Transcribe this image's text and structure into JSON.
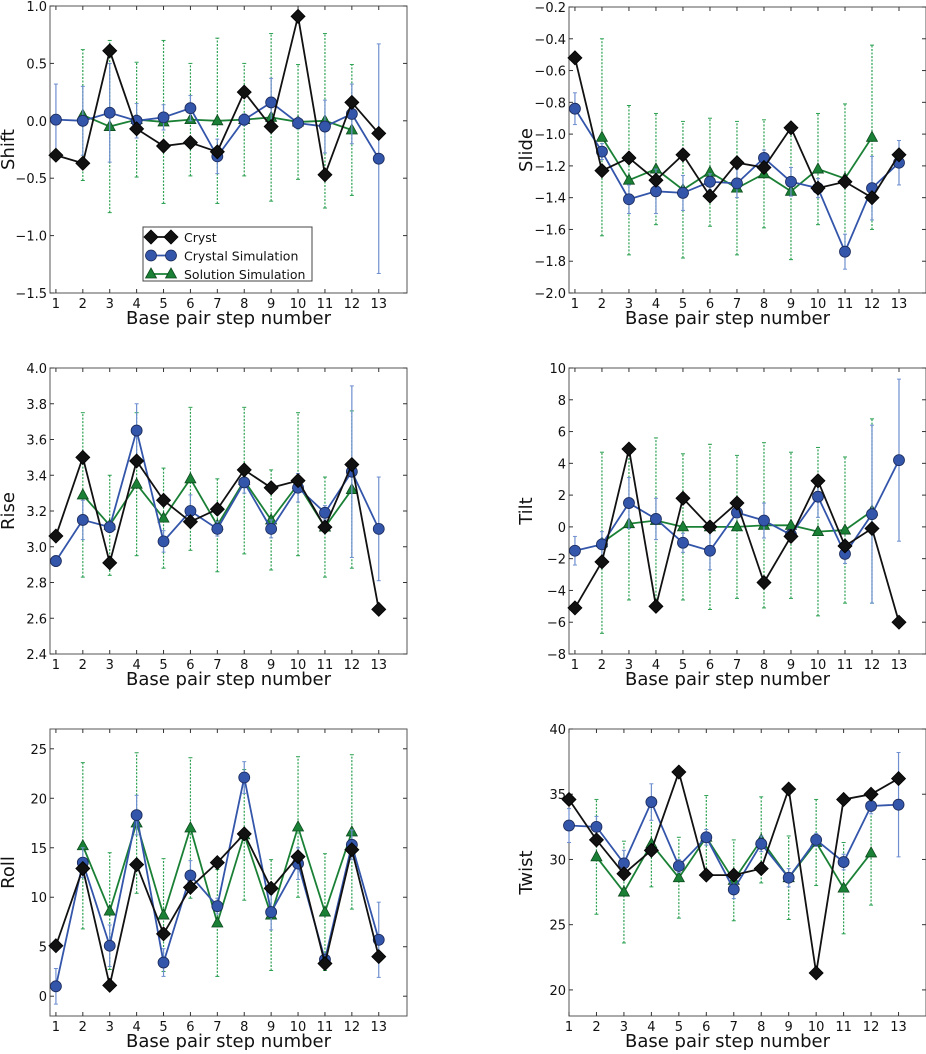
{
  "colors": {
    "cryst": "#111111",
    "crystal_sim": "#3355aa",
    "solution_sim": "#1a8035",
    "crystal_sim_err": "#6f8fd0",
    "solution_sim_err": "#2aa050"
  },
  "legend": {
    "cryst": "Cryst",
    "crystal_sim": "Crystal Simulation",
    "solution_sim": "Solution Simulation"
  },
  "chart_data": [
    {
      "type": "line",
      "title": "",
      "xlabel": "Base pair step number",
      "ylabel": "Shift",
      "xlim": [
        0.78,
        14.05
      ],
      "ylim": [
        -1.5,
        1.0
      ],
      "xticks": [
        "1",
        "2",
        "3",
        "4",
        "5",
        "6",
        "7",
        "8",
        "9",
        "10",
        "11",
        "12",
        "13"
      ],
      "yticks": [
        -1.5,
        -1.0,
        -0.5,
        0.0,
        0.5,
        1.0
      ],
      "yticklabels": [
        "−1.5",
        "−1.0",
        "−0.5",
        "0.0",
        "0.5",
        "1.0"
      ],
      "legend_position": "lower-center",
      "series": [
        {
          "name": "Cryst",
          "x": [
            1,
            2,
            3,
            4,
            5,
            6,
            7,
            8,
            9,
            10,
            11,
            12,
            13
          ],
          "values": [
            -0.3,
            -0.37,
            0.61,
            -0.07,
            -0.22,
            -0.19,
            -0.27,
            0.25,
            -0.05,
            0.91,
            -0.47,
            0.16,
            -0.11
          ]
        },
        {
          "name": "Crystal Simulation",
          "x": [
            1,
            2,
            3,
            4,
            5,
            6,
            7,
            8,
            9,
            10,
            11,
            12,
            13
          ],
          "values": [
            0.01,
            0.0,
            0.07,
            0.0,
            0.03,
            0.11,
            -0.31,
            0.01,
            0.16,
            -0.02,
            -0.05,
            0.06,
            -0.33
          ],
          "errors": [
            0.31,
            0.3,
            0.43,
            0.15,
            0.11,
            0.11,
            0.15,
            0.05,
            0.21,
            0.05,
            0.23,
            0.26,
            1.0
          ]
        },
        {
          "name": "Solution Simulation",
          "x": [
            2,
            3,
            4,
            5,
            6,
            7,
            8,
            9,
            10,
            11,
            12
          ],
          "values": [
            0.05,
            -0.05,
            0.01,
            -0.01,
            0.01,
            0.0,
            0.01,
            0.03,
            -0.01,
            0.0,
            -0.08
          ],
          "errors": [
            0.57,
            0.75,
            0.5,
            0.71,
            0.49,
            0.72,
            0.49,
            0.73,
            0.5,
            0.76,
            0.57
          ]
        }
      ]
    },
    {
      "type": "line",
      "title": "",
      "xlabel": "Base pair step number",
      "ylabel": "Slide",
      "xlim": [
        0.78,
        14.0
      ],
      "ylim": [
        -2.0,
        -0.2
      ],
      "xticks": [
        "1",
        "2",
        "3",
        "4",
        "5",
        "6",
        "7",
        "8",
        "9",
        "10",
        "11",
        "12",
        "13"
      ],
      "yticks": [
        -2.0,
        -1.8,
        -1.6,
        -1.4,
        -1.2,
        -1.0,
        -0.8,
        -0.6,
        -0.4,
        -0.2
      ],
      "yticklabels": [
        "−2.0",
        "−1.8",
        "−1.6",
        "−1.4",
        "−1.2",
        "−1.0",
        "−0.8",
        "−0.6",
        "−0.4",
        "−0.2"
      ],
      "series": [
        {
          "name": "Cryst",
          "x": [
            1,
            2,
            3,
            4,
            5,
            6,
            7,
            8,
            9,
            10,
            11,
            12,
            13
          ],
          "values": [
            -0.52,
            -1.23,
            -1.15,
            -1.29,
            -1.13,
            -1.39,
            -1.18,
            -1.21,
            -0.96,
            -1.34,
            -1.3,
            -1.4,
            -1.13
          ]
        },
        {
          "name": "Crystal Simulation",
          "x": [
            1,
            2,
            3,
            4,
            5,
            6,
            7,
            8,
            9,
            10,
            11,
            12,
            13
          ],
          "values": [
            -0.84,
            -1.11,
            -1.41,
            -1.36,
            -1.37,
            -1.3,
            -1.31,
            -1.15,
            -1.3,
            -1.34,
            -1.74,
            -1.34,
            -1.18
          ],
          "errors": [
            0.1,
            0.05,
            0.09,
            0.14,
            0.11,
            0.05,
            0.09,
            0.05,
            0.09,
            0.06,
            0.11,
            0.2,
            0.14
          ]
        },
        {
          "name": "Solution Simulation",
          "x": [
            2,
            3,
            4,
            5,
            6,
            7,
            8,
            9,
            10,
            11,
            12
          ],
          "values": [
            -1.02,
            -1.29,
            -1.22,
            -1.35,
            -1.24,
            -1.34,
            -1.25,
            -1.36,
            -1.22,
            -1.28,
            -1.02
          ],
          "errors": [
            0.62,
            0.47,
            0.35,
            0.43,
            0.34,
            0.42,
            0.34,
            0.43,
            0.35,
            0.47,
            0.58
          ]
        }
      ]
    },
    {
      "type": "line",
      "title": "",
      "xlabel": "Base pair step number",
      "ylabel": "Rise",
      "xlim": [
        0.78,
        14.05
      ],
      "ylim": [
        2.4,
        4.0
      ],
      "xticks": [
        "1",
        "2",
        "3",
        "4",
        "5",
        "6",
        "7",
        "8",
        "9",
        "10",
        "11",
        "12",
        "13"
      ],
      "yticks": [
        2.4,
        2.6,
        2.8,
        3.0,
        3.2,
        3.4,
        3.6,
        3.8,
        4.0
      ],
      "yticklabels": [
        "2.4",
        "2.6",
        "2.8",
        "3.0",
        "3.2",
        "3.4",
        "3.6",
        "3.8",
        "4.0"
      ],
      "series": [
        {
          "name": "Cryst",
          "x": [
            1,
            2,
            3,
            4,
            5,
            6,
            7,
            8,
            9,
            10,
            11,
            12,
            13
          ],
          "values": [
            3.06,
            3.5,
            2.91,
            3.48,
            3.26,
            3.14,
            3.21,
            3.43,
            3.33,
            3.37,
            3.11,
            3.46,
            2.65
          ]
        },
        {
          "name": "Crystal Simulation",
          "x": [
            1,
            2,
            3,
            4,
            5,
            6,
            7,
            8,
            9,
            10,
            11,
            12,
            13
          ],
          "values": [
            2.92,
            3.15,
            3.11,
            3.65,
            3.03,
            3.2,
            3.1,
            3.36,
            3.1,
            3.33,
            3.19,
            3.42,
            3.1
          ],
          "errors": [
            0.03,
            0.11,
            0.03,
            0.15,
            0.06,
            0.09,
            0.04,
            0.06,
            0.05,
            0.08,
            0.04,
            0.48,
            0.29
          ]
        },
        {
          "name": "Solution Simulation",
          "x": [
            2,
            3,
            4,
            5,
            6,
            7,
            8,
            9,
            10,
            11,
            12
          ],
          "values": [
            3.29,
            3.12,
            3.35,
            3.16,
            3.38,
            3.12,
            3.37,
            3.15,
            3.35,
            3.11,
            3.32
          ],
          "errors": [
            0.46,
            0.28,
            0.4,
            0.28,
            0.4,
            0.26,
            0.41,
            0.28,
            0.4,
            0.28,
            0.44
          ]
        }
      ]
    },
    {
      "type": "line",
      "title": "",
      "xlabel": "Base pair step number",
      "ylabel": "Tilt",
      "xlim": [
        0.78,
        14.0
      ],
      "ylim": [
        -8,
        10
      ],
      "xticks": [
        "1",
        "2",
        "3",
        "4",
        "5",
        "6",
        "7",
        "8",
        "9",
        "10",
        "11",
        "12",
        "13"
      ],
      "yticks": [
        -8,
        -6,
        -4,
        -2,
        0,
        2,
        4,
        6,
        8,
        10
      ],
      "yticklabels": [
        "−8",
        "−6",
        "−4",
        "−2",
        "0",
        "2",
        "4",
        "6",
        "8",
        "10"
      ],
      "series": [
        {
          "name": "Cryst",
          "x": [
            1,
            2,
            3,
            4,
            5,
            6,
            7,
            8,
            9,
            10,
            11,
            12,
            13
          ],
          "values": [
            -5.1,
            -2.2,
            4.9,
            -5.0,
            1.8,
            0.0,
            1.5,
            -3.5,
            -0.6,
            2.9,
            -1.2,
            -0.1,
            -6.0
          ]
        },
        {
          "name": "Crystal Simulation",
          "x": [
            1,
            2,
            3,
            4,
            5,
            6,
            7,
            8,
            9,
            10,
            11,
            12,
            13
          ],
          "values": [
            -1.5,
            -1.1,
            1.5,
            0.5,
            -1.0,
            -1.5,
            0.9,
            0.4,
            -0.5,
            1.9,
            -1.7,
            0.8,
            4.2
          ],
          "errors": [
            0.9,
            0.8,
            1.6,
            1.3,
            0.6,
            1.2,
            0.3,
            1.1,
            0.3,
            1.3,
            0.6,
            5.6,
            5.1
          ]
        },
        {
          "name": "Solution Simulation",
          "x": [
            2,
            3,
            4,
            5,
            6,
            7,
            8,
            9,
            10,
            11,
            12
          ],
          "values": [
            -1.0,
            0.2,
            0.4,
            0.0,
            0.0,
            0.0,
            0.1,
            0.1,
            -0.3,
            -0.2,
            1.0
          ],
          "errors": [
            5.7,
            4.8,
            5.2,
            4.6,
            5.2,
            4.5,
            5.2,
            4.6,
            5.3,
            4.6,
            5.8
          ]
        }
      ]
    },
    {
      "type": "line",
      "title": "",
      "xlabel": "Base pair step number",
      "ylabel": "Roll",
      "xlim": [
        0.78,
        14.05
      ],
      "ylim": [
        -2,
        27
      ],
      "xticks": [
        "1",
        "2",
        "3",
        "4",
        "5",
        "6",
        "7",
        "8",
        "9",
        "10",
        "11",
        "12",
        "13"
      ],
      "yticks": [
        0,
        5,
        10,
        15,
        20,
        25
      ],
      "yticklabels": [
        "0",
        "5",
        "10",
        "15",
        "20",
        "25"
      ],
      "series": [
        {
          "name": "Cryst",
          "x": [
            1,
            2,
            3,
            4,
            5,
            6,
            7,
            8,
            9,
            10,
            11,
            12,
            13
          ],
          "values": [
            5.1,
            12.9,
            1.1,
            13.3,
            6.3,
            11.0,
            13.5,
            16.4,
            10.9,
            14.1,
            3.3,
            14.8,
            4.0
          ]
        },
        {
          "name": "Crystal Simulation",
          "x": [
            1,
            2,
            3,
            4,
            5,
            6,
            7,
            8,
            9,
            10,
            11,
            12,
            13
          ],
          "values": [
            1.0,
            13.5,
            5.1,
            18.3,
            3.4,
            12.2,
            9.1,
            22.1,
            8.5,
            13.4,
            3.7,
            15.3,
            5.7
          ],
          "errors": [
            1.8,
            1.5,
            2.1,
            2.0,
            1.4,
            1.5,
            0.8,
            1.6,
            1.8,
            1.6,
            0.6,
            1.5,
            3.8
          ]
        },
        {
          "name": "Solution Simulation",
          "x": [
            2,
            3,
            4,
            5,
            6,
            7,
            8,
            9,
            10,
            11,
            12
          ],
          "values": [
            15.2,
            8.6,
            17.5,
            8.2,
            17.0,
            7.4,
            16.3,
            8.2,
            17.1,
            8.5,
            16.6
          ],
          "errors": [
            8.4,
            5.9,
            7.1,
            5.7,
            7.1,
            5.4,
            6.6,
            5.6,
            7.1,
            5.9,
            7.8
          ]
        }
      ]
    },
    {
      "type": "line",
      "title": "",
      "xlabel": "Base pair step number",
      "ylabel": "Twist",
      "xlim": [
        1,
        14
      ],
      "ylim": [
        18,
        40
      ],
      "xticks": [
        "1",
        "2",
        "3",
        "4",
        "5",
        "6",
        "7",
        "8",
        "9",
        "10",
        "11",
        "12",
        "13"
      ],
      "yticks": [
        20,
        25,
        30,
        35,
        40
      ],
      "yticklabels": [
        "20",
        "25",
        "30",
        "35",
        "40"
      ],
      "series": [
        {
          "name": "Cryst",
          "x": [
            1,
            2,
            3,
            4,
            5,
            6,
            7,
            8,
            9,
            10,
            11,
            12,
            13
          ],
          "values": [
            34.6,
            31.5,
            28.9,
            30.7,
            36.7,
            28.8,
            28.8,
            29.3,
            35.4,
            21.3,
            34.6,
            35.0,
            36.2
          ]
        },
        {
          "name": "Crystal Simulation",
          "x": [
            1,
            2,
            3,
            4,
            5,
            6,
            7,
            8,
            9,
            10,
            11,
            12,
            13
          ],
          "values": [
            32.6,
            32.5,
            29.7,
            34.4,
            29.5,
            31.7,
            27.7,
            31.2,
            28.6,
            31.5,
            29.8,
            34.1,
            34.2
          ],
          "errors": [
            1.3,
            0.8,
            1.0,
            1.4,
            0.5,
            0.6,
            0.7,
            0.6,
            0.7,
            0.5,
            0.6,
            0.6,
            4.0
          ]
        },
        {
          "name": "Solution Simulation",
          "x": [
            2,
            3,
            4,
            5,
            6,
            7,
            8,
            9,
            10,
            11,
            12
          ],
          "values": [
            30.2,
            27.5,
            31.2,
            28.6,
            31.7,
            28.4,
            31.5,
            28.6,
            31.3,
            27.8,
            30.5
          ],
          "errors": [
            4.4,
            3.9,
            3.3,
            3.1,
            3.2,
            3.1,
            3.3,
            3.2,
            3.3,
            3.5,
            4.0
          ]
        }
      ]
    }
  ]
}
